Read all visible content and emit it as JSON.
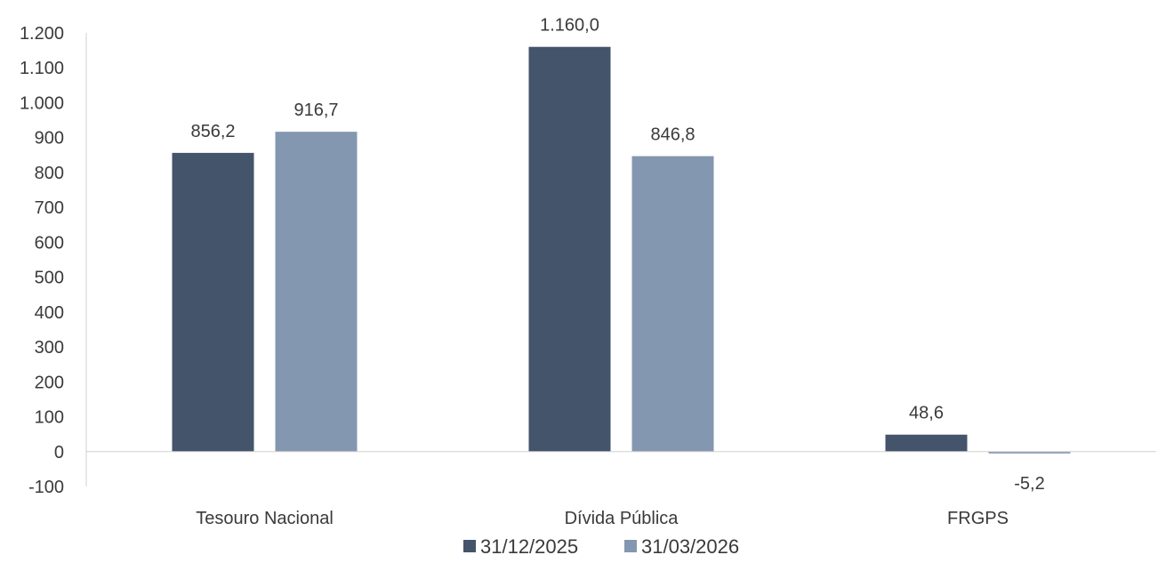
{
  "chart_data": {
    "type": "bar",
    "categories": [
      "Tesouro Nacional",
      "Dívida Pública",
      "FRGPS"
    ],
    "series": [
      {
        "name": "31/12/2025",
        "color": "#44546a",
        "values": [
          856.2,
          1160.0,
          48.6
        ],
        "labels": [
          "856,2",
          "1.160,0",
          "48,6"
        ]
      },
      {
        "name": "31/03/2026",
        "color": "#8497b0",
        "values": [
          916.7,
          846.8,
          -5.2
        ],
        "labels": [
          "916,7",
          "846,8",
          "-5,2"
        ]
      }
    ],
    "ylim": [
      -100,
      1200
    ],
    "ytick_values": [
      -100,
      0,
      100,
      200,
      300,
      400,
      500,
      600,
      700,
      800,
      900,
      1000,
      1100,
      1200
    ],
    "ytick_labels": [
      "-100",
      "0",
      "100",
      "200",
      "300",
      "400",
      "500",
      "600",
      "700",
      "800",
      "900",
      "1.000",
      "1.100",
      "1.200"
    ],
    "title": "",
    "xlabel": "",
    "ylabel": "",
    "grid": false,
    "legend_position": "bottom"
  }
}
